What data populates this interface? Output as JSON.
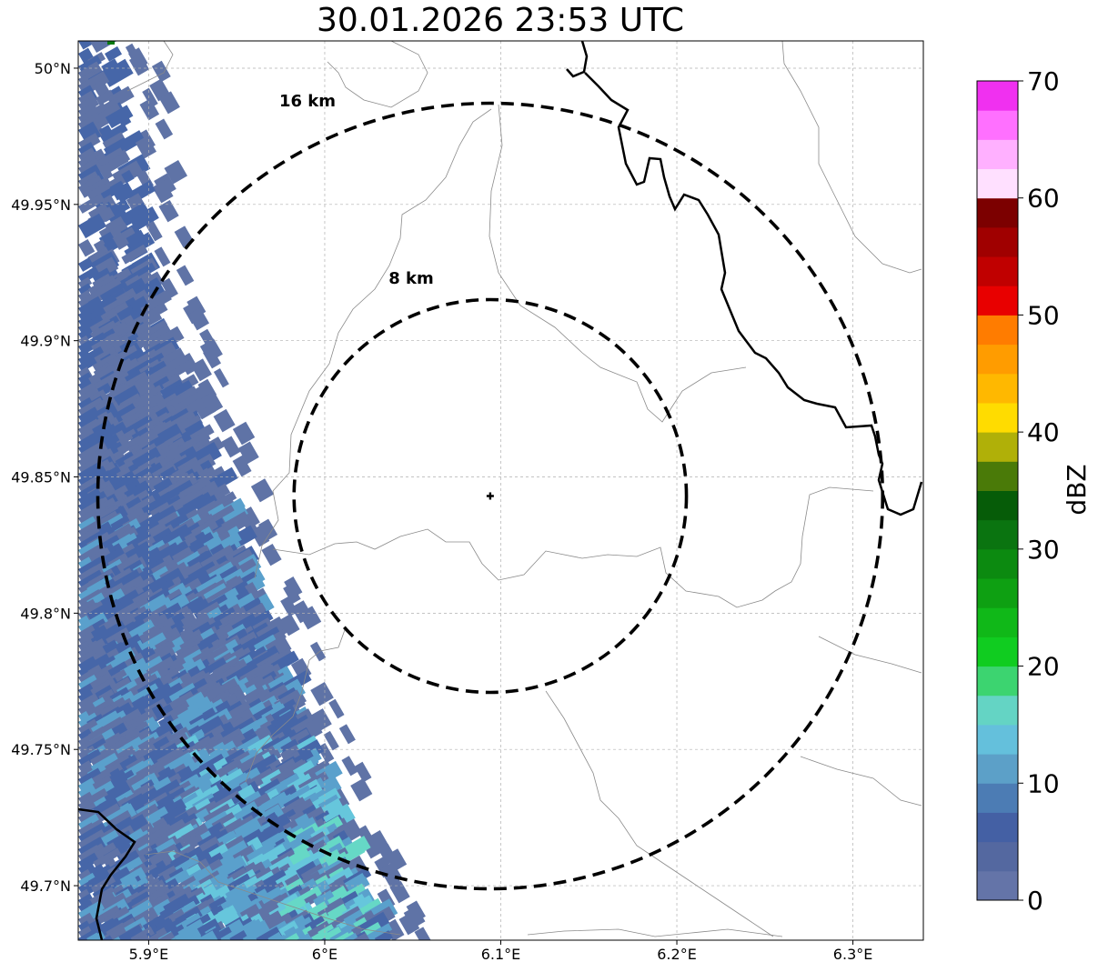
{
  "title": "30.01.2026 23:53 UTC",
  "map": {
    "lon_range": [
      5.86,
      6.34
    ],
    "lat_range": [
      49.68,
      50.01
    ],
    "x_ticks": [
      {
        "value": 5.9,
        "label": "5.9°E"
      },
      {
        "value": 6.0,
        "label": "6°E"
      },
      {
        "value": 6.1,
        "label": "6.1°E"
      },
      {
        "value": 6.2,
        "label": "6.2°E"
      },
      {
        "value": 6.3,
        "label": "6.3°E"
      }
    ],
    "y_ticks": [
      {
        "value": 50.0,
        "label": "50°N"
      },
      {
        "value": 49.95,
        "label": "49.95°N"
      },
      {
        "value": 49.9,
        "label": "49.9°N"
      },
      {
        "value": 49.85,
        "label": "49.85°N"
      },
      {
        "value": 49.8,
        "label": "49.8°N"
      },
      {
        "value": 49.75,
        "label": "49.75°N"
      },
      {
        "value": 49.7,
        "label": "49.7°N"
      }
    ],
    "grid": true,
    "radar_center": {
      "lon": 6.094,
      "lat": 49.843
    },
    "rings": [
      {
        "radius_km": 8,
        "label": "8 km"
      },
      {
        "radius_km": 16,
        "label": "16 km"
      }
    ]
  },
  "colorbar": {
    "label": "dBZ",
    "min": 0,
    "max": 70,
    "step": 2.5,
    "tick_labels": [
      "0",
      "10",
      "20",
      "30",
      "40",
      "50",
      "60",
      "70"
    ],
    "colors": [
      "#6474a8",
      "#5468a0",
      "#4460a4",
      "#4c7cb4",
      "#5ca0c8",
      "#64c0dc",
      "#64d4c4",
      "#3cd470",
      "#10cc20",
      "#10b818",
      "#0ea012",
      "#0c8a10",
      "#0a7410",
      "#065c08",
      "#4a7a08",
      "#b0b008",
      "#ffdc00",
      "#ffb800",
      "#ff9c00",
      "#ff7c00",
      "#e80000",
      "#c00000",
      "#a00000",
      "#7c0000",
      "#ffe0ff",
      "#ffb0ff",
      "#ff70ff",
      "#f030f0"
    ]
  },
  "echo_colors": {
    "base": "#5f73a6",
    "mid": "#4666a8",
    "light": "#5aa0cc",
    "cyan": "#66c6dc",
    "teal": "#66d8c6",
    "green": "#0a7a10"
  }
}
